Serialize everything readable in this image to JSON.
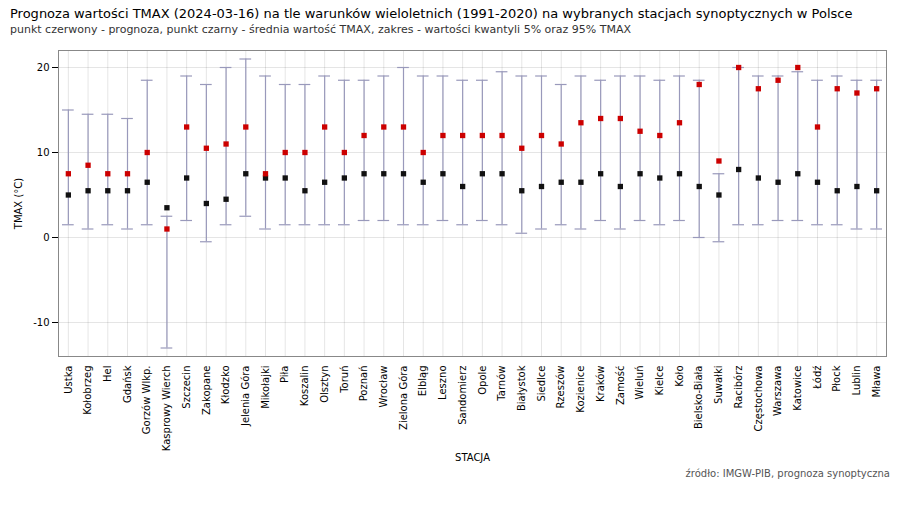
{
  "chart_data": {
    "type": "errorbar",
    "title": "Prognoza wartości TMAX (2024-03-16) na tle warunków wieloletnich (1991-2020) na wybranych stacjach synoptycznych w Polsce",
    "subtitle": "punkt czerwony - prognoza, punkt czarny - średnia wartość TMAX, zakres - wartości kwantyli 5% oraz 95% TMAX",
    "xlabel": "STACJA",
    "ylabel": "TMAX (°C)",
    "source": "źródło: IMGW-PIB, prognoza synoptyczna",
    "categories": [
      "Ustka",
      "Kołobrzeg",
      "Hel",
      "Gdańsk",
      "Gorzów Wlkp.",
      "Kasprowy Wierch",
      "Szczecin",
      "Zakopane",
      "Kłodzko",
      "Jelenia Góra",
      "Mikołajki",
      "Piła",
      "Koszalin",
      "Olsztyn",
      "Toruń",
      "Poznań",
      "Wrocław",
      "Zielona Góra",
      "Elbląg",
      "Leszno",
      "Sandomierz",
      "Opole",
      "Tarnów",
      "Białystok",
      "Siedlce",
      "Rzeszów",
      "Kozienice",
      "Kraków",
      "Zamość",
      "Wieluń",
      "Kielce",
      "Koło",
      "Bielsko-Biała",
      "Suwałki",
      "Racibórz",
      "Częstochowa",
      "Warszawa",
      "Katowice",
      "Łódź",
      "Płock",
      "Lublin",
      "Mława"
    ],
    "series": [
      {
        "color": "#111111",
        "marker": "square",
        "values": [
          5.0,
          5.5,
          5.5,
          5.5,
          6.5,
          3.5,
          7.0,
          4.0,
          4.5,
          7.5,
          7.0,
          7.0,
          5.5,
          6.5,
          7.0,
          7.5,
          7.5,
          7.5,
          6.5,
          7.5,
          6.0,
          7.5,
          7.5,
          5.5,
          6.0,
          6.5,
          6.5,
          7.5,
          6.0,
          7.5,
          7.0,
          7.5,
          6.0,
          5.0,
          8.0,
          7.0,
          6.5,
          7.5,
          6.5,
          5.5,
          6.0,
          5.5
        ]
      },
      {
        "color": "#cc0000",
        "marker": "square",
        "values": [
          7.5,
          8.5,
          7.5,
          7.5,
          10.0,
          1.0,
          13.0,
          10.5,
          11.0,
          13.0,
          7.5,
          10.0,
          10.0,
          13.0,
          10.0,
          12.0,
          13.0,
          13.0,
          10.0,
          12.0,
          12.0,
          12.0,
          12.0,
          10.5,
          12.0,
          11.0,
          13.5,
          14.0,
          14.0,
          12.5,
          12.0,
          13.5,
          18.0,
          9.0,
          20.0,
          17.5,
          18.5,
          20.0,
          13.0,
          17.5,
          17.0,
          17.5
        ]
      }
    ],
    "error_bars": {
      "color": "#9999bb",
      "low": [
        1.5,
        1.0,
        1.5,
        1.0,
        1.5,
        -13.0,
        2.0,
        -0.5,
        1.5,
        2.5,
        1.0,
        1.5,
        1.5,
        1.5,
        1.5,
        2.0,
        2.0,
        1.5,
        1.5,
        2.0,
        1.5,
        2.0,
        1.5,
        0.5,
        1.0,
        1.5,
        1.0,
        2.0,
        1.0,
        2.0,
        1.5,
        2.0,
        0.0,
        -0.5,
        1.5,
        1.5,
        2.0,
        2.0,
        1.5,
        1.5,
        1.0,
        1.0
      ],
      "high": [
        15.0,
        14.5,
        14.5,
        14.0,
        18.5,
        2.5,
        19.0,
        18.0,
        20.0,
        21.0,
        19.0,
        18.0,
        18.0,
        19.0,
        18.5,
        18.5,
        19.0,
        20.0,
        19.0,
        19.0,
        18.5,
        18.5,
        19.5,
        19.0,
        19.0,
        18.0,
        19.0,
        18.5,
        19.0,
        19.0,
        18.5,
        19.0,
        18.5,
        7.5,
        20.0,
        19.0,
        19.0,
        19.5,
        18.5,
        19.0,
        18.5,
        18.5
      ]
    },
    "ylim": [
      -14,
      22
    ],
    "yticks": [
      -10,
      0,
      10,
      20
    ],
    "grid": true
  }
}
